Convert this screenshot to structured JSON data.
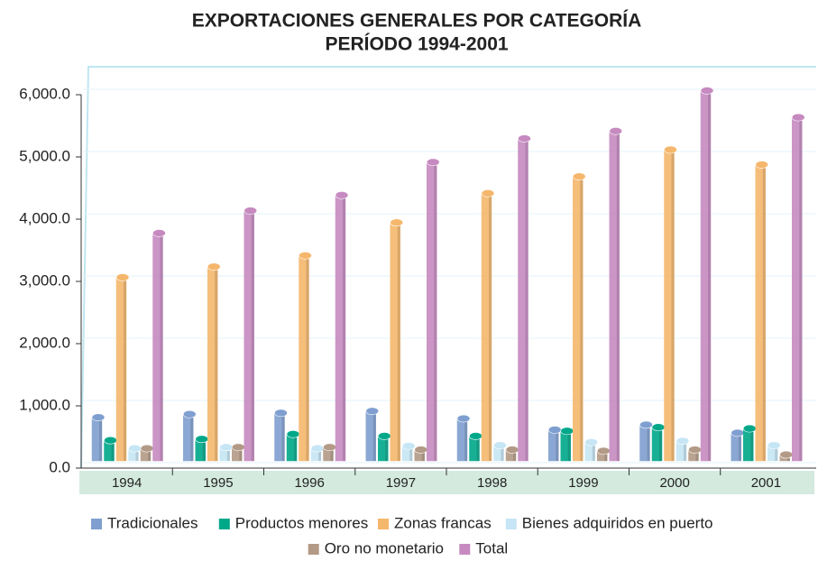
{
  "chart_data": {
    "type": "bar",
    "title": "EXPORTACIONES GENERALES POR CATEGORÍA",
    "subtitle": "PERÍODO 1994-2001",
    "categories": [
      "1994",
      "1995",
      "1996",
      "1997",
      "1998",
      "1999",
      "2000",
      "2001"
    ],
    "series": [
      {
        "name": "Tradicionales",
        "color": "#7f9fd0",
        "values": [
          700,
          750,
          770,
          800,
          680,
          500,
          580,
          450
        ]
      },
      {
        "name": "Productos menores",
        "color": "#00a88a",
        "values": [
          330,
          350,
          430,
          400,
          400,
          480,
          540,
          520
        ]
      },
      {
        "name": "Zonas francas",
        "color": "#f5b76c",
        "values": [
          2950,
          3120,
          3300,
          3830,
          4300,
          4570,
          5000,
          4760
        ]
      },
      {
        "name": "Bienes adquiridos en puerto",
        "color": "#c6e6f5",
        "values": [
          200,
          220,
          200,
          240,
          250,
          300,
          320,
          250
        ]
      },
      {
        "name": "Oro no monetario",
        "color": "#b39a86",
        "values": [
          200,
          220,
          220,
          180,
          180,
          160,
          180,
          100
        ]
      },
      {
        "name": "Total",
        "color": "#c68ac0",
        "values": [
          3660,
          4020,
          4270,
          4800,
          5180,
          5300,
          5950,
          5520
        ]
      }
    ],
    "ylim": [
      0,
      6000
    ],
    "yticks": [
      {
        "value": 0,
        "label": "0.0"
      },
      {
        "value": 1000,
        "label": "1,000.0"
      },
      {
        "value": 2000,
        "label": "2,000.0"
      },
      {
        "value": 3000,
        "label": "3,000.0"
      },
      {
        "value": 4000,
        "label": "4,000.0"
      },
      {
        "value": 5000,
        "label": "5,000.0"
      },
      {
        "value": 6000,
        "label": "6,000.0"
      }
    ],
    "grid": true
  }
}
